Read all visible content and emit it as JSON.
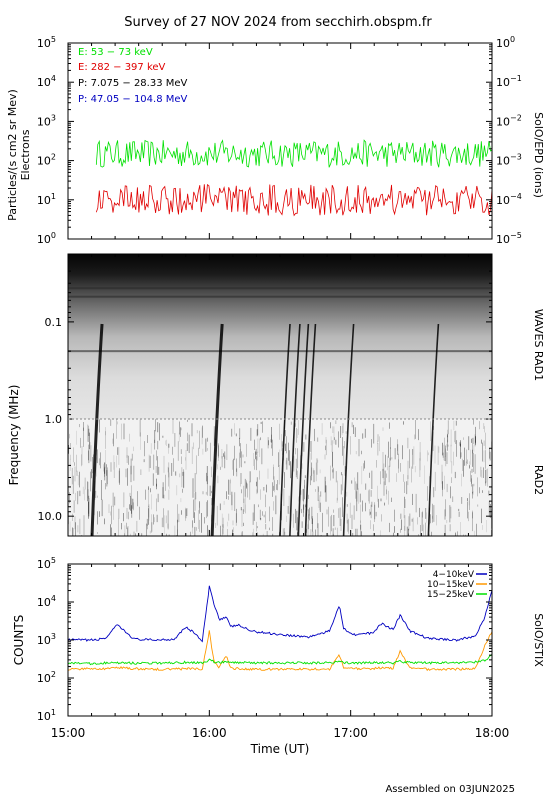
{
  "header": {
    "title": "Survey of 27 NOV 2024 from secchirh.obspm.fr",
    "footer": "Assembled on 03JUN2025"
  },
  "colors": {
    "green": "#00e000",
    "red": "#e00000",
    "black": "#000000",
    "blue": "#0000c0",
    "orange": "#ff9900"
  },
  "chart_data": [
    {
      "id": "epd",
      "type": "line",
      "ylabel": "Particles/(s cm2 sr Mev)",
      "ylabel2": "Electrons",
      "right_label": "SolO/EPD (ions)",
      "yscale": "log",
      "ylim": [
        1,
        100000
      ],
      "y_ticks": [
        {
          "base": "10",
          "exp": "0"
        },
        {
          "base": "10",
          "exp": "1"
        },
        {
          "base": "10",
          "exp": "2"
        },
        {
          "base": "10",
          "exp": "3"
        },
        {
          "base": "10",
          "exp": "4"
        },
        {
          "base": "10",
          "exp": "5"
        }
      ],
      "y2_ticks": [
        {
          "base": "10",
          "exp": "−5"
        },
        {
          "base": "10",
          "exp": "−4"
        },
        {
          "base": "10",
          "exp": "−3"
        },
        {
          "base": "10",
          "exp": "−2"
        },
        {
          "base": "10",
          "exp": "−1"
        },
        {
          "base": "10",
          "exp": "0"
        }
      ],
      "legend": [
        {
          "label": "E: 53 − 73 keV",
          "color": "#00e000"
        },
        {
          "label": "E: 282 − 397 keV",
          "color": "#e00000"
        },
        {
          "label": "P: 7.075 − 28.33 MeV",
          "color": "#000000"
        },
        {
          "label": "P: 47.05 − 104.8 MeV",
          "color": "#0000c0"
        }
      ],
      "series": [
        {
          "name": "E: 53 − 73 keV",
          "color": "#00e000",
          "median": 150,
          "spread_decades": 0.35
        },
        {
          "name": "E: 282 − 397 keV",
          "color": "#e00000",
          "median": 10,
          "spread_decades": 0.4
        }
      ]
    },
    {
      "id": "waves",
      "type": "heatmap",
      "ylabel": "Frequency (MHz)",
      "yscale": "log",
      "inverted": true,
      "ylim": [
        0.02,
        16
      ],
      "y_ticks": [
        "0.1",
        "1.0",
        "10.0"
      ],
      "y_tick_values": [
        0.1,
        1.0,
        10.0
      ],
      "right_labels": [
        "WAVES RAD1",
        "RAD2"
      ],
      "band_boundary_mhz": 1.0,
      "type_iii_bursts_hours": [
        15.17,
        16.02,
        16.5,
        16.57,
        16.63,
        16.68,
        16.95,
        17.55
      ]
    },
    {
      "id": "stix",
      "type": "line",
      "ylabel": "COUNTS",
      "right_label": "SolO/STIX",
      "yscale": "log",
      "ylim": [
        10,
        100000
      ],
      "y_ticks": [
        {
          "base": "10",
          "exp": "1"
        },
        {
          "base": "10",
          "exp": "2"
        },
        {
          "base": "10",
          "exp": "3"
        },
        {
          "base": "10",
          "exp": "4"
        },
        {
          "base": "10",
          "exp": "5"
        }
      ],
      "x": [
        15.0,
        15.1,
        15.2,
        15.27,
        15.35,
        15.4,
        15.47,
        15.6,
        15.75,
        15.83,
        15.9,
        15.95,
        16.0,
        16.03,
        16.07,
        16.12,
        16.15,
        16.2,
        16.3,
        16.5,
        16.7,
        16.85,
        16.92,
        16.95,
        17.02,
        17.15,
        17.22,
        17.3,
        17.35,
        17.42,
        17.55,
        17.75,
        17.88,
        17.95,
        18.0
      ],
      "series": [
        {
          "name": "4−10keV",
          "color": "#0000c0",
          "values": [
            1000,
            1000,
            1000,
            1150,
            2500,
            1700,
            1050,
            1000,
            1050,
            2200,
            1500,
            900,
            25000,
            10000,
            3500,
            4000,
            2200,
            2500,
            1700,
            1400,
            1200,
            1700,
            8500,
            2000,
            1400,
            1500,
            2700,
            1900,
            4500,
            1700,
            1100,
            1000,
            1250,
            4000,
            20000
          ]
        },
        {
          "name": "10−15keV",
          "color": "#ff9900",
          "values": [
            170,
            175,
            175,
            175,
            190,
            185,
            175,
            170,
            170,
            175,
            175,
            170,
            1700,
            300,
            190,
            400,
            185,
            175,
            170,
            170,
            170,
            170,
            420,
            185,
            175,
            175,
            185,
            180,
            500,
            185,
            170,
            170,
            175,
            700,
            1700
          ]
        },
        {
          "name": "15−25keV",
          "color": "#00e000",
          "values": [
            250,
            240,
            240,
            250,
            250,
            250,
            245,
            245,
            250,
            260,
            255,
            245,
            300,
            270,
            260,
            265,
            255,
            255,
            250,
            250,
            250,
            250,
            265,
            255,
            250,
            250,
            255,
            250,
            270,
            255,
            250,
            250,
            260,
            290,
            400
          ]
        }
      ]
    }
  ],
  "x_axis": {
    "xlabel": "Time (UT)",
    "xlim": [
      15.0,
      18.0
    ],
    "tick_values": [
      15.0,
      16.0,
      17.0,
      18.0
    ],
    "tick_labels": [
      "15:00",
      "16:00",
      "17:00",
      "18:00"
    ]
  }
}
